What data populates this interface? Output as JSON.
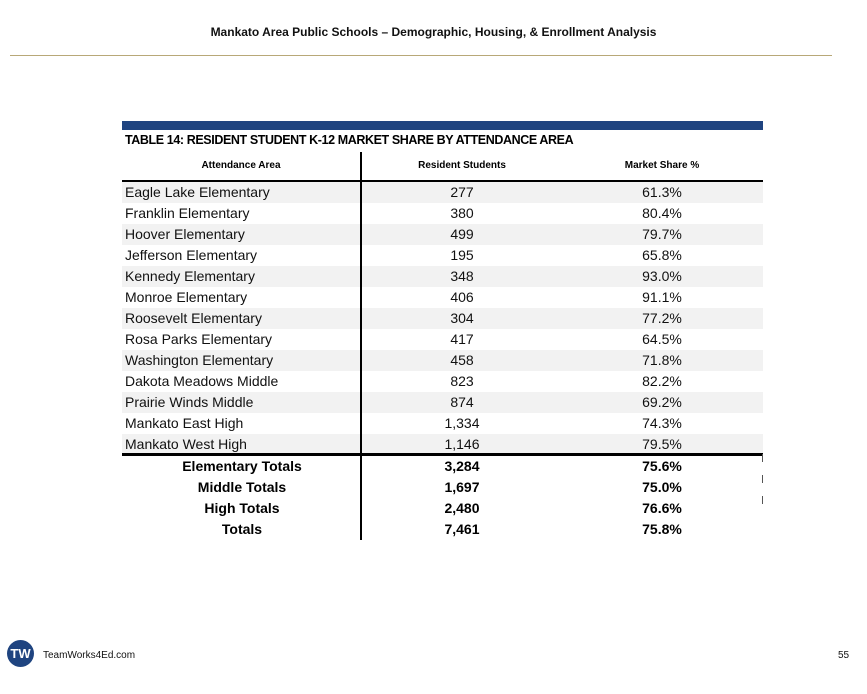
{
  "header": {
    "title": "Mankato Area Public Schools – Demographic, Housing, & Enrollment Analysis"
  },
  "table": {
    "title": "TABLE 14: RESIDENT STUDENT K-12 MARKET SHARE BY ATTENDANCE AREA",
    "columns": [
      "Attendance Area",
      "Resident Students",
      "Market Share %"
    ],
    "rows": [
      [
        "Eagle Lake Elementary",
        "277",
        "61.3%"
      ],
      [
        "Franklin Elementary",
        "380",
        "80.4%"
      ],
      [
        "Hoover Elementary",
        "499",
        "79.7%"
      ],
      [
        "Jefferson Elementary",
        "195",
        "65.8%"
      ],
      [
        "Kennedy Elementary",
        "348",
        "93.0%"
      ],
      [
        "Monroe Elementary",
        "406",
        "91.1%"
      ],
      [
        "Roosevelt Elementary",
        "304",
        "77.2%"
      ],
      [
        "Rosa Parks Elementary",
        "417",
        "64.5%"
      ],
      [
        "Washington Elementary",
        "458",
        "71.8%"
      ],
      [
        "Dakota Meadows Middle",
        "823",
        "82.2%"
      ],
      [
        "Prairie Winds Middle",
        "874",
        "69.2%"
      ],
      [
        "Mankato East High",
        "1,334",
        "74.3%"
      ],
      [
        "Mankato West High",
        "1,146",
        "79.5%"
      ]
    ],
    "totals": [
      [
        "Elementary Totals",
        "3,284",
        "75.6%"
      ],
      [
        "Middle Totals",
        "1,697",
        "75.0%"
      ],
      [
        "High Totals",
        "2,480",
        "76.6%"
      ],
      [
        "Totals",
        "7,461",
        "75.8%"
      ]
    ]
  },
  "footer": {
    "logo": "TW",
    "site": "TeamWorks4Ed.com",
    "page": "55"
  },
  "colors": {
    "accent": "#1f4480",
    "shade": "#f2f2f2"
  }
}
